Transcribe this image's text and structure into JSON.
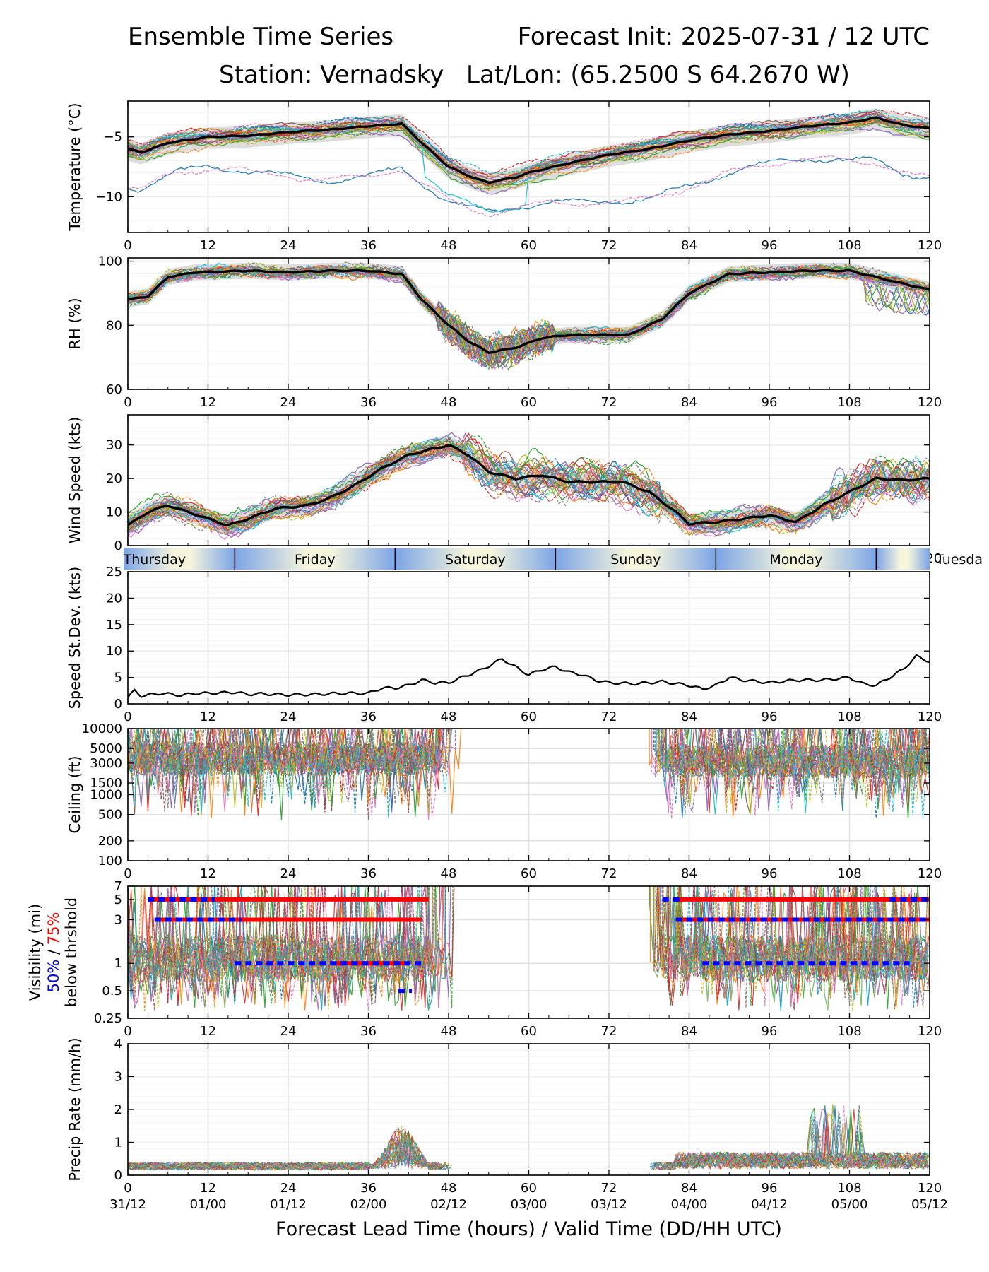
{
  "header": {
    "title_left": "Ensemble Time Series",
    "title_right": "Forecast Init: 2025-07-31 / 12 UTC",
    "station": "Station: Vernadsky",
    "latlon": "Lat/Lon: (65.2500 S 64.2670 W)"
  },
  "days": [
    "Thursday",
    "Friday",
    "Saturday",
    "Sunday",
    "Monday",
    "Tuesda"
  ],
  "x_ticks": [
    0,
    12,
    24,
    36,
    48,
    60,
    72,
    84,
    96,
    108,
    120
  ],
  "valid_time_labels": [
    "31/12",
    "01/00",
    "01/12",
    "02/00",
    "02/12",
    "03/00",
    "03/12",
    "04/00",
    "04/12",
    "05/00",
    "05/12"
  ],
  "xlabel": "Forecast Lead Time (hours) / Valid Time (DD/HH UTC)",
  "series_colors": [
    "#1f77b4",
    "#ff7f0e",
    "#2ca02c",
    "#d62728",
    "#9467bd",
    "#8c564b",
    "#e377c2",
    "#7f7f7f",
    "#bcbd22",
    "#17becf"
  ],
  "chart_data": [
    {
      "type": "line",
      "ylabel": "Temperature (°C)",
      "ylim": [
        -13,
        -2
      ],
      "yticks": [
        -10,
        -5
      ],
      "ytick_labels": [
        "−10",
        "−5"
      ],
      "grid": true,
      "mean_series": {
        "x": [
          0,
          2,
          6,
          12,
          18,
          24,
          30,
          36,
          41,
          44,
          48,
          52,
          54,
          58,
          60,
          66,
          72,
          78,
          84,
          90,
          96,
          102,
          108,
          112,
          116,
          120
        ],
        "y": [
          -6.0,
          -6.3,
          -5.5,
          -5.0,
          -4.9,
          -4.6,
          -4.4,
          -4.1,
          -3.9,
          -5.5,
          -7.5,
          -8.5,
          -8.8,
          -8.4,
          -8.0,
          -7.2,
          -6.5,
          -6.0,
          -5.3,
          -4.8,
          -4.5,
          -4.1,
          -3.8,
          -3.4,
          -4.0,
          -4.3
        ]
      },
      "spread_band": {
        "lower_offset": -1.0,
        "upper_offset": 0.8
      }
    },
    {
      "type": "line",
      "ylabel": "RH (%)",
      "ylim": [
        60,
        101
      ],
      "yticks": [
        60,
        80,
        100
      ],
      "ytick_labels": [
        "60",
        "80",
        "100"
      ],
      "grid": true,
      "mean_series": {
        "x": [
          0,
          3,
          6,
          10,
          18,
          24,
          30,
          36,
          41,
          44,
          48,
          51,
          54,
          58,
          62,
          66,
          70,
          75,
          80,
          84,
          90,
          96,
          102,
          108,
          112,
          116,
          120
        ],
        "y": [
          88,
          89,
          95,
          96.5,
          97,
          96.5,
          97,
          97,
          96,
          88,
          80,
          75,
          71.5,
          73,
          76,
          77,
          77,
          77,
          82,
          90,
          96,
          96.5,
          97,
          97,
          95,
          93,
          91
        ]
      },
      "spread_band": {
        "lower_offset": -2.5,
        "upper_offset": 2.5
      }
    },
    {
      "type": "line",
      "ylabel": "Wind Speed (kts)",
      "ylim": [
        0,
        39
      ],
      "yticks": [
        0,
        10,
        20,
        30
      ],
      "ytick_labels": [
        "0",
        "10",
        "20",
        "30"
      ],
      "grid": true,
      "mean_series": {
        "x": [
          0,
          3,
          6,
          9,
          12,
          15,
          18,
          22,
          27,
          30,
          34,
          38,
          42,
          45,
          48,
          51,
          54,
          58,
          62,
          66,
          70,
          74,
          78,
          82,
          84,
          88,
          92,
          96,
          100,
          104,
          108,
          112,
          116,
          120
        ],
        "y": [
          6,
          10,
          12,
          10,
          8,
          6,
          8,
          11,
          12,
          14,
          18,
          23,
          27,
          28.5,
          30,
          27,
          22,
          20,
          21,
          19,
          19,
          19,
          16,
          10,
          6.5,
          7,
          8,
          9,
          7,
          12,
          16,
          20,
          19.5,
          20
        ]
      },
      "spread_band": {
        "lower_offset": -3.0,
        "upper_offset": 3.0
      }
    },
    {
      "type": "line",
      "ylabel": "Speed St.Dev. (kts)",
      "ylim": [
        0,
        25
      ],
      "yticks": [
        0,
        5,
        10,
        15,
        20,
        25
      ],
      "ytick_labels": [
        "0",
        "5",
        "10",
        "15",
        "20",
        "25"
      ],
      "grid": true,
      "series": [
        {
          "x": [
            0,
            1,
            2,
            5,
            8,
            10,
            12,
            16,
            18,
            20,
            24,
            28,
            32,
            36,
            38,
            40,
            42,
            44,
            46,
            48,
            50,
            53,
            56,
            58,
            60,
            62,
            64,
            66,
            68,
            70,
            72,
            76,
            80,
            84,
            86,
            88,
            90,
            92,
            96,
            100,
            104,
            108,
            110,
            112,
            114,
            116,
            118,
            120
          ],
          "y": [
            1.2,
            2.5,
            1.5,
            2.0,
            1.6,
            2.0,
            2.0,
            2.2,
            1.8,
            1.9,
            1.7,
            1.8,
            2.0,
            2.0,
            3.0,
            3.0,
            3.5,
            4.5,
            4.0,
            4.0,
            5.0,
            6.5,
            8.5,
            7.0,
            5.5,
            6.5,
            7.0,
            6.0,
            5.5,
            4.5,
            4.0,
            3.8,
            4.2,
            3.5,
            2.8,
            3.5,
            5.0,
            4.5,
            4.0,
            4.5,
            4.5,
            5.0,
            3.8,
            3.5,
            5.0,
            6.5,
            9.0,
            8.0
          ]
        }
      ]
    },
    {
      "type": "line",
      "ylabel": "Ceiling (ft)",
      "scale": "log",
      "ylim": [
        100,
        10000
      ],
      "yticks": [
        100,
        200,
        500,
        1000,
        1500,
        3000,
        5000,
        10000
      ],
      "ytick_labels": [
        "100",
        "200",
        "500",
        "1000",
        "1500",
        "3000",
        "5000",
        "10000"
      ],
      "grid": true,
      "data_gap": [
        48,
        79
      ]
    },
    {
      "type": "line",
      "ylabel_parts": [
        "Visibility (mi)",
        "50%",
        " / ",
        "75%",
        "below thrshold"
      ],
      "scale": "log",
      "ylim": [
        0.25,
        7
      ],
      "yticks": [
        0.25,
        0.5,
        1,
        3,
        5,
        7
      ],
      "ytick_labels": [
        "0.25",
        "0.5",
        "1",
        "3",
        "5",
        "7"
      ],
      "grid": true,
      "threshold_75_red": [
        {
          "level": 5,
          "x_start": 3,
          "x_end": 45
        },
        {
          "level": 3,
          "x_start": 4,
          "x_end": 44
        },
        {
          "level": 1,
          "x_start": 31,
          "x_end": 42
        },
        {
          "level": 5,
          "x_start": 82,
          "x_end": 120
        },
        {
          "level": 3,
          "x_start": 83,
          "x_end": 120
        }
      ],
      "threshold_50_blue": [
        {
          "level": 5,
          "x_start": 3,
          "x_end": 13
        },
        {
          "level": 3,
          "x_start": 4,
          "x_end": 17
        },
        {
          "level": 1,
          "x_start": 16,
          "x_end": 44
        },
        {
          "level": 0.5,
          "x_start": 40.5,
          "x_end": 42.5
        },
        {
          "level": 5,
          "x_start": 80,
          "x_end": 83
        },
        {
          "level": 5,
          "x_start": 114,
          "x_end": 120
        },
        {
          "level": 3,
          "x_start": 82,
          "x_end": 120
        },
        {
          "level": 1,
          "x_start": 86,
          "x_end": 117
        }
      ]
    },
    {
      "type": "line",
      "ylabel": "Precip Rate (mm/h)",
      "ylim": [
        0,
        4
      ],
      "yticks": [
        0,
        1,
        2,
        3,
        4
      ],
      "ytick_labels": [
        "0",
        "1",
        "2",
        "3",
        "4"
      ],
      "grid": true,
      "data_gap": [
        48,
        78
      ]
    }
  ]
}
